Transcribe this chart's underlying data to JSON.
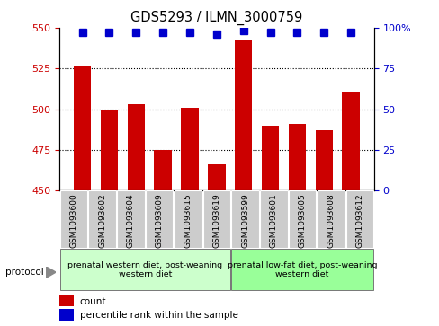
{
  "title": "GDS5293 / ILMN_3000759",
  "samples": [
    "GSM1093600",
    "GSM1093602",
    "GSM1093604",
    "GSM1093609",
    "GSM1093615",
    "GSM1093619",
    "GSM1093599",
    "GSM1093601",
    "GSM1093605",
    "GSM1093608",
    "GSM1093612"
  ],
  "counts": [
    527,
    500,
    503,
    475,
    501,
    466,
    542,
    490,
    491,
    487,
    511
  ],
  "percentiles": [
    97,
    97,
    97,
    97,
    97,
    96,
    98,
    97,
    97,
    97,
    97
  ],
  "ylim_left": [
    450,
    550
  ],
  "ylim_right": [
    0,
    100
  ],
  "yticks_left": [
    450,
    475,
    500,
    525,
    550
  ],
  "yticks_right": [
    0,
    25,
    50,
    75,
    100
  ],
  "ytick_right_labels": [
    "0",
    "25",
    "50",
    "75",
    "100%"
  ],
  "bar_color": "#cc0000",
  "dot_color": "#0000cc",
  "group1_label": "prenatal western diet, post-weaning\nwestern diet",
  "group2_label": "prenatal low-fat diet, post-weaning\nwestern diet",
  "group1_count": 6,
  "group2_count": 5,
  "group1_color": "#ccffcc",
  "group2_color": "#99ff99",
  "tick_bg_color": "#cccccc",
  "legend_count_label": "count",
  "legend_pct_label": "percentile rank within the sample",
  "protocol_label": "protocol"
}
